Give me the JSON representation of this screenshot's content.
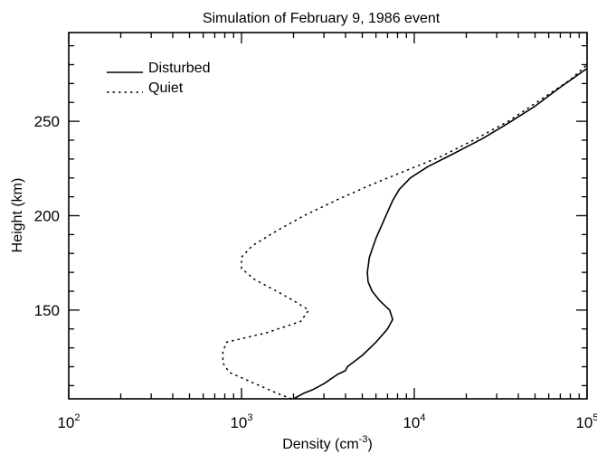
{
  "chart_data": {
    "type": "line",
    "title": "Simulation of February 9, 1986 event",
    "xlabel": {
      "main": "Density (cm",
      "sup": "-3",
      "tail": ")"
    },
    "ylabel": "Height (km)",
    "xscale": "log",
    "xlim": [
      100,
      100000
    ],
    "ylim": [
      103,
      297
    ],
    "x_major_ticks": [
      {
        "value": 100,
        "base": "10",
        "exp": "2"
      },
      {
        "value": 1000,
        "base": "10",
        "exp": "3"
      },
      {
        "value": 10000,
        "base": "10",
        "exp": "4"
      },
      {
        "value": 100000,
        "base": "10",
        "exp": "5"
      }
    ],
    "y_ticks": [
      {
        "value": 150,
        "label": "150"
      },
      {
        "value": 200,
        "label": "200"
      },
      {
        "value": 250,
        "label": "250"
      }
    ],
    "legend_position": "top-left",
    "series": [
      {
        "name": "Disturbed",
        "style": "solid",
        "points": [
          [
            2000,
            103
          ],
          [
            2300,
            106
          ],
          [
            2600,
            108
          ],
          [
            3000,
            111
          ],
          [
            3600,
            116
          ],
          [
            4000,
            118
          ],
          [
            4100,
            120
          ],
          [
            5000,
            126
          ],
          [
            6000,
            133
          ],
          [
            7000,
            140
          ],
          [
            7500,
            145
          ],
          [
            7200,
            150
          ],
          [
            6300,
            155
          ],
          [
            5700,
            160
          ],
          [
            5400,
            165
          ],
          [
            5350,
            170
          ],
          [
            5500,
            178
          ],
          [
            6000,
            188
          ],
          [
            6700,
            198
          ],
          [
            7500,
            208
          ],
          [
            8200,
            214
          ],
          [
            9500,
            220
          ],
          [
            12000,
            226
          ],
          [
            17000,
            233
          ],
          [
            25000,
            241
          ],
          [
            35000,
            249
          ],
          [
            50000,
            258
          ],
          [
            70000,
            268
          ],
          [
            100000,
            278
          ]
        ]
      },
      {
        "name": "Quiet",
        "style": "dotted",
        "points": [
          [
            1950,
            103
          ],
          [
            1700,
            105
          ],
          [
            1200,
            111
          ],
          [
            850,
            117
          ],
          [
            780,
            122
          ],
          [
            780,
            128
          ],
          [
            820,
            133
          ],
          [
            1400,
            138
          ],
          [
            2200,
            144
          ],
          [
            2450,
            150
          ],
          [
            2000,
            155
          ],
          [
            1600,
            160
          ],
          [
            1200,
            166
          ],
          [
            1000,
            172
          ],
          [
            1000,
            178
          ],
          [
            1150,
            184
          ],
          [
            1600,
            192
          ],
          [
            2300,
            200
          ],
          [
            3500,
            208
          ],
          [
            5500,
            216
          ],
          [
            9000,
            224
          ],
          [
            14000,
            231
          ],
          [
            22000,
            240
          ],
          [
            35000,
            250
          ],
          [
            55000,
            262
          ],
          [
            80000,
            272
          ],
          [
            100000,
            280
          ]
        ]
      }
    ]
  }
}
